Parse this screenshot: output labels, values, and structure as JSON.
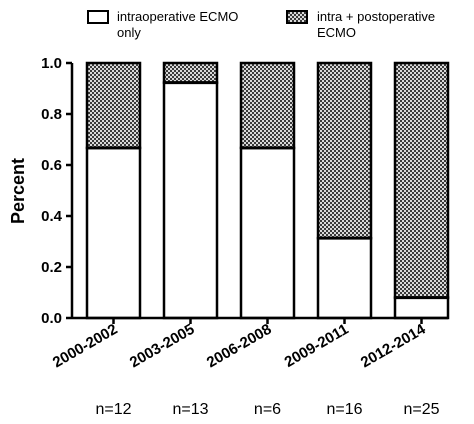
{
  "chart_data": {
    "type": "bar",
    "stacked": true,
    "categories": [
      "2000-2002",
      "2003-2005",
      "2006-2008",
      "2009-2011",
      "2012-2014"
    ],
    "sample_sizes": [
      "n=12",
      "n=13",
      "n=6",
      "n=16",
      "n=25"
    ],
    "series": [
      {
        "name": "intraoperative ECMO only",
        "legend_lines": [
          "intraoperative ECMO",
          "only"
        ],
        "values": [
          0.667,
          0.923,
          0.667,
          0.313,
          0.08
        ],
        "fill": "#ffffff",
        "pattern": "none"
      },
      {
        "name": "intra + postoperative ECMO",
        "legend_lines": [
          "intra + postoperative",
          "ECMO"
        ],
        "values": [
          0.333,
          0.077,
          0.333,
          0.687,
          0.92
        ],
        "fill": "#b0b0b0",
        "pattern": "crosshatch"
      }
    ],
    "ylabel": "Percent",
    "xlabel": "",
    "ylim": [
      0,
      1.0
    ],
    "yticks": [
      "0.0",
      "0.2",
      "0.4",
      "0.6",
      "0.8",
      "1.0"
    ],
    "ytick_values": [
      0,
      0.2,
      0.4,
      0.6,
      0.8,
      1.0
    ],
    "grid": false,
    "legend_position": "top"
  }
}
